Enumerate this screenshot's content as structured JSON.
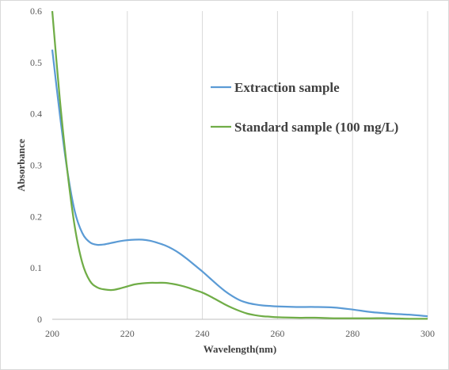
{
  "chart_data": {
    "type": "line",
    "title": "",
    "xlabel": "Wavelength(nm)",
    "ylabel": "Absorbance",
    "xlim": [
      200,
      300
    ],
    "ylim": [
      0,
      0.6
    ],
    "xticks": [
      "200",
      "220",
      "240",
      "260",
      "280",
      "300"
    ],
    "yticks": [
      "0",
      "0.1",
      "0.2",
      "0.3",
      "0.4",
      "0.5",
      "0.6"
    ],
    "grid": "vertical",
    "legend_position": "upper-right-inside",
    "series": [
      {
        "name": "Extraction sample",
        "color": "#5b9bd5",
        "x": [
          200,
          202,
          204,
          206,
          208,
          210,
          212,
          214,
          216,
          218,
          220,
          222,
          224,
          226,
          228,
          230,
          232,
          234,
          236,
          238,
          240,
          242,
          244,
          246,
          248,
          250,
          252,
          254,
          256,
          258,
          260,
          265,
          270,
          275,
          280,
          285,
          290,
          295,
          300
        ],
        "y": [
          0.525,
          0.4,
          0.29,
          0.21,
          0.168,
          0.15,
          0.145,
          0.146,
          0.149,
          0.152,
          0.154,
          0.155,
          0.155,
          0.153,
          0.149,
          0.144,
          0.137,
          0.128,
          0.117,
          0.105,
          0.093,
          0.08,
          0.067,
          0.055,
          0.045,
          0.037,
          0.032,
          0.029,
          0.027,
          0.026,
          0.025,
          0.024,
          0.024,
          0.023,
          0.019,
          0.014,
          0.011,
          0.009,
          0.006
        ]
      },
      {
        "name": "Standard sample (100 mg/L)",
        "color": "#70ad47",
        "x": [
          200,
          202,
          204,
          206,
          208,
          210,
          212,
          214,
          216,
          218,
          220,
          222,
          224,
          226,
          228,
          230,
          232,
          234,
          236,
          238,
          240,
          242,
          244,
          246,
          248,
          250,
          252,
          254,
          256,
          258,
          260,
          265,
          270,
          275,
          280,
          285,
          290,
          295,
          300
        ],
        "y": [
          0.6,
          0.43,
          0.29,
          0.18,
          0.11,
          0.075,
          0.062,
          0.058,
          0.057,
          0.06,
          0.064,
          0.068,
          0.07,
          0.071,
          0.071,
          0.071,
          0.069,
          0.066,
          0.062,
          0.057,
          0.052,
          0.045,
          0.037,
          0.029,
          0.022,
          0.016,
          0.011,
          0.008,
          0.006,
          0.005,
          0.004,
          0.003,
          0.003,
          0.002,
          0.002,
          0.002,
          0.002,
          0.001,
          0.001
        ]
      }
    ]
  }
}
